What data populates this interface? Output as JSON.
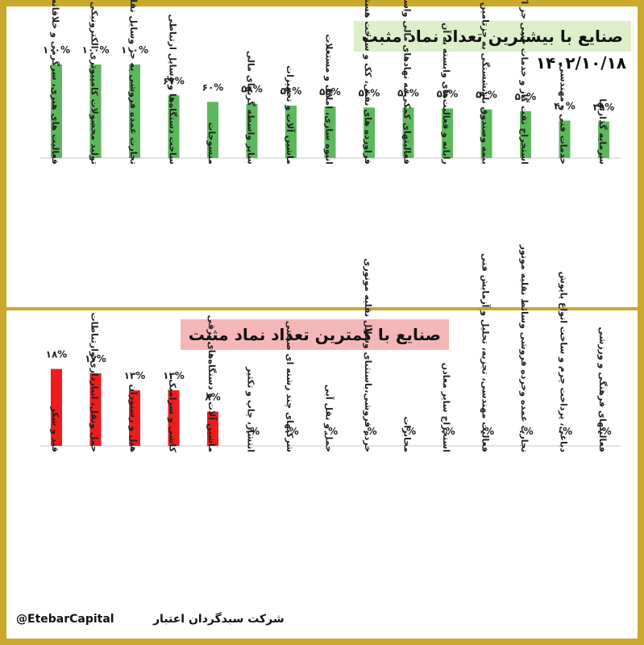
{
  "top_title": "صنایع با بیشترین تعداد نماد مثبت",
  "date": "۱۴۰۲/۱۰/۱۸",
  "bottom_title": "صنایع با کمترین تعداد نماد مثبت",
  "footer_company": "شرکت سبدگردان اعتبار",
  "footer_handle": "@EtebarCapital",
  "colors": {
    "frame": "#c8a92c",
    "top_bar": "#5cb85c",
    "bottom_bar": "#f01c1c"
  },
  "chart_data": [
    {
      "type": "bar",
      "title": "صنایع با بیشترین تعداد نماد مثبت",
      "subtitle": "۱۴۰۲/۱۰/۱۸",
      "categories": [
        "فعالیت های هنری، سرگرمی و خلاقانه",
        "تولید محصولات کامپیوتری الکترونیکی ونوری",
        "تجارت عمده فروشی به جز وسایل نقلیه موتور",
        "ساخت دستگاه‌ها و وسایل ارتباطی",
        "منسوجات",
        "سایر واسطه گریهای مالی",
        "ماشین آلات و تجهیزات",
        "انبوه سازی، املاک و مستغلات",
        "فراورده های نفتی، کک و سوخت هسته ای",
        "فعالیتهای کمکی به نهادهای مالی واسط",
        "رایانه و فعالیت‌های وابسته به آن",
        "بیمه وصندوق بازنشستگی به جزتامین اجتماعی",
        "استخراج نفت گاز و خدمات جنبی جز اکتشاف",
        "خدمات فنی و مهندسی",
        "سرمایه گذاریها"
      ],
      "labels": [
        "۱۰۰%",
        "۱۰۰%",
        "۱۰۰%",
        "۶۷%",
        "۶۰%",
        "۵۸%",
        "۵۶%",
        "۵۵%",
        "۵۴%",
        "۵۴%",
        "۵۳%",
        "۵۲%",
        "۵۰%",
        "۴۰%",
        "۳۹%"
      ],
      "values": [
        100,
        100,
        100,
        67,
        60,
        58,
        56,
        55,
        54,
        54,
        53,
        52,
        50,
        40,
        39
      ],
      "unit": "%",
      "ylim": [
        0,
        100
      ],
      "grid": false,
      "legend": "none"
    },
    {
      "type": "bar",
      "title": "صنایع با کمترین تعداد نماد مثبت",
      "categories": [
        "قند و شکر",
        "حمل ونقل، انبارداری وارتباطات",
        "هتل و رستوران",
        "کاشی و سرامیک",
        "ماشین آلات و دستگاه‌های برقی",
        "انتشار، چاپ و تکثیر",
        "شرکتهای چند رشته ای صنعتی",
        "حمل و نقل آبی",
        "خرده فروشی،باستثنای وسایل نقلیه موتوری",
        "مخابرات",
        "استخراج سایر معادن",
        "فعالیت مهندسی، تجزیه، تحلیل و آزمایش فنی",
        "تجارت عمده وخرده فروشی وسائط نقلیه موتور",
        "دباغی، پرداخت چرم و ساخت انواع پاپوش",
        "فعالیتهای فرهنگی و ورزشی"
      ],
      "labels": [
        "۱۸%",
        "۱۷%",
        "۱۳%",
        "۱۳%",
        "۸%",
        "۰%",
        "۰%",
        "۰%",
        "۰%",
        "۰%",
        "۰%",
        "۰%",
        "۰%",
        "۰%",
        "۰%"
      ],
      "values": [
        18,
        17,
        13,
        13,
        8,
        0,
        0,
        0,
        0,
        0,
        0,
        0,
        0,
        0,
        0
      ],
      "unit": "%",
      "ylim": [
        0,
        20
      ],
      "grid": false,
      "legend": "none"
    }
  ]
}
